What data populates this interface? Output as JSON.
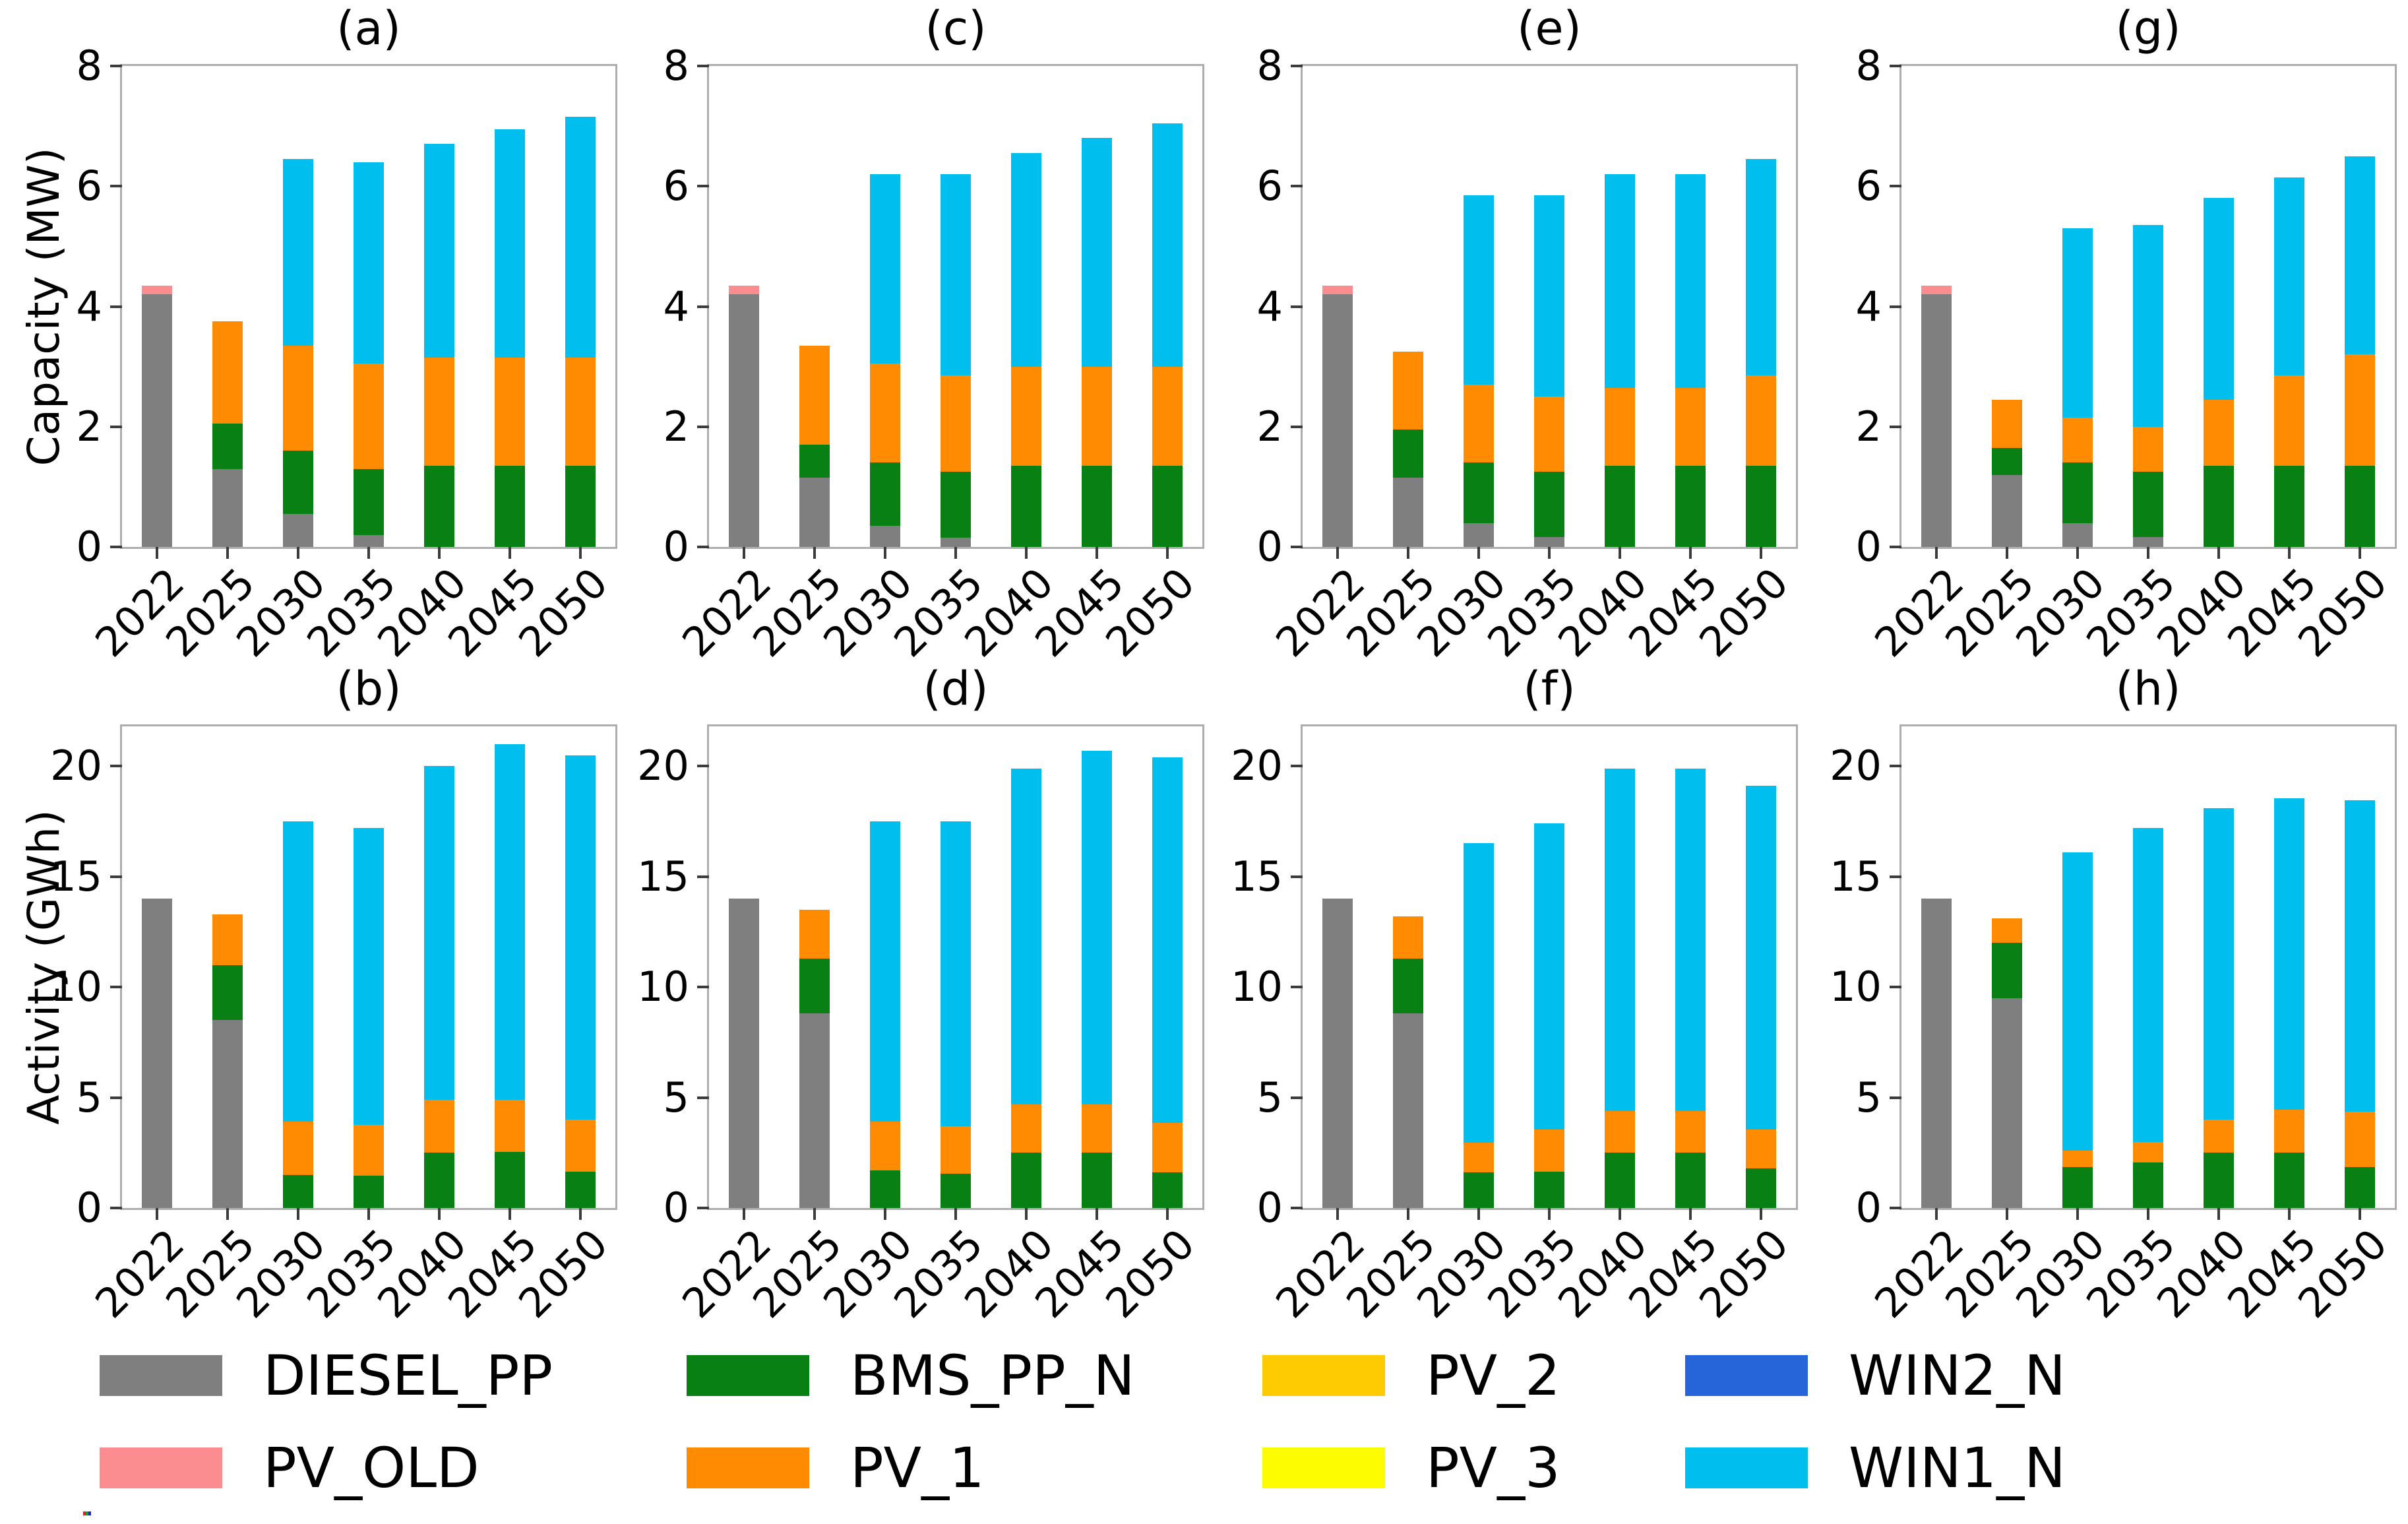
{
  "colors": {
    "DIESEL_PP": "#7f7f7f",
    "PV_OLD": "#fb8d90",
    "BMS_PP_N": "#088013",
    "PV_1": "#fe8b02",
    "PV_2": "#fecb02",
    "PV_3": "#fdfc00",
    "WIN2_N": "#2565d9",
    "WIN1_N": "#00bfef",
    "spine": "#adadad",
    "tick": "#3c3c3c"
  },
  "legend": {
    "items": [
      {
        "label": "DIESEL_PP",
        "color_key": "DIESEL_PP",
        "row": 0,
        "col": 0
      },
      {
        "label": "PV_OLD",
        "color_key": "PV_OLD",
        "row": 1,
        "col": 0
      },
      {
        "label": "BMS_PP_N",
        "color_key": "BMS_PP_N",
        "row": 0,
        "col": 1
      },
      {
        "label": "PV_1",
        "color_key": "PV_1",
        "row": 1,
        "col": 1
      },
      {
        "label": "PV_2",
        "color_key": "PV_2",
        "row": 0,
        "col": 2
      },
      {
        "label": "PV_3",
        "color_key": "PV_3",
        "row": 1,
        "col": 2
      },
      {
        "label": "WIN2_N",
        "color_key": "WIN2_N",
        "row": 0,
        "col": 3
      },
      {
        "label": "WIN1_N",
        "color_key": "WIN1_N",
        "row": 1,
        "col": 3
      }
    ]
  },
  "chart_data": [
    {
      "id": "a",
      "title": "(a)",
      "type": "bar",
      "stacked": true,
      "ylabel": "Capacity (MW)",
      "categories": [
        "2022",
        "2025",
        "2030",
        "2035",
        "2040",
        "2045",
        "2050"
      ],
      "ylim": [
        0,
        8
      ],
      "yticks": [
        0,
        2,
        4,
        6,
        8
      ],
      "grid": false,
      "series": [
        {
          "name": "DIESEL_PP",
          "values": [
            4.2,
            1.3,
            0.55,
            0.2,
            0,
            0,
            0
          ]
        },
        {
          "name": "PV_OLD",
          "values": [
            0.15,
            0,
            0,
            0,
            0,
            0,
            0
          ]
        },
        {
          "name": "BMS_PP_N",
          "values": [
            0,
            0.75,
            1.05,
            1.1,
            1.35,
            1.35,
            1.35
          ]
        },
        {
          "name": "PV_1",
          "values": [
            0,
            1.7,
            1.75,
            1.75,
            1.8,
            1.8,
            1.8
          ]
        },
        {
          "name": "WIN1_N",
          "values": [
            0,
            0,
            3.1,
            3.35,
            3.55,
            3.8,
            4.0
          ]
        }
      ]
    },
    {
      "id": "c",
      "title": "(c)",
      "type": "bar",
      "stacked": true,
      "categories": [
        "2022",
        "2025",
        "2030",
        "2035",
        "2040",
        "2045",
        "2050"
      ],
      "ylim": [
        0,
        8
      ],
      "yticks": [
        0,
        2,
        4,
        6,
        8
      ],
      "grid": false,
      "series": [
        {
          "name": "DIESEL_PP",
          "values": [
            4.2,
            1.15,
            0.35,
            0.15,
            0,
            0,
            0
          ]
        },
        {
          "name": "PV_OLD",
          "values": [
            0.15,
            0,
            0,
            0,
            0,
            0,
            0
          ]
        },
        {
          "name": "BMS_PP_N",
          "values": [
            0,
            0.55,
            1.05,
            1.1,
            1.35,
            1.35,
            1.35
          ]
        },
        {
          "name": "PV_1",
          "values": [
            0,
            1.65,
            1.65,
            1.6,
            1.65,
            1.65,
            1.65
          ]
        },
        {
          "name": "WIN1_N",
          "values": [
            0,
            0,
            3.15,
            3.35,
            3.55,
            3.8,
            4.05
          ]
        }
      ]
    },
    {
      "id": "e",
      "title": "(e)",
      "type": "bar",
      "stacked": true,
      "categories": [
        "2022",
        "2025",
        "2030",
        "2035",
        "2040",
        "2045",
        "2050"
      ],
      "ylim": [
        0,
        8
      ],
      "yticks": [
        0,
        2,
        4,
        6,
        8
      ],
      "grid": false,
      "series": [
        {
          "name": "DIESEL_PP",
          "values": [
            4.2,
            1.15,
            0.4,
            0.17,
            0,
            0,
            0
          ]
        },
        {
          "name": "PV_OLD",
          "values": [
            0.15,
            0,
            0,
            0,
            0,
            0,
            0
          ]
        },
        {
          "name": "BMS_PP_N",
          "values": [
            0,
            0.8,
            1.0,
            1.08,
            1.35,
            1.35,
            1.35
          ]
        },
        {
          "name": "PV_1",
          "values": [
            0,
            1.3,
            1.3,
            1.25,
            1.3,
            1.3,
            1.5
          ]
        },
        {
          "name": "WIN1_N",
          "values": [
            0,
            0,
            3.15,
            3.35,
            3.55,
            3.55,
            3.6
          ]
        }
      ]
    },
    {
      "id": "g",
      "title": "(g)",
      "type": "bar",
      "stacked": true,
      "categories": [
        "2022",
        "2025",
        "2030",
        "2035",
        "2040",
        "2045",
        "2050"
      ],
      "ylim": [
        0,
        8
      ],
      "yticks": [
        0,
        2,
        4,
        6,
        8
      ],
      "grid": false,
      "series": [
        {
          "name": "DIESEL_PP",
          "values": [
            4.2,
            1.2,
            0.4,
            0.17,
            0,
            0,
            0
          ]
        },
        {
          "name": "PV_OLD",
          "values": [
            0.15,
            0,
            0,
            0,
            0,
            0,
            0
          ]
        },
        {
          "name": "BMS_PP_N",
          "values": [
            0,
            0.45,
            1.0,
            1.08,
            1.35,
            1.35,
            1.35
          ]
        },
        {
          "name": "PV_1",
          "values": [
            0,
            0.8,
            0.75,
            0.75,
            1.1,
            1.5,
            1.85
          ]
        },
        {
          "name": "WIN1_N",
          "values": [
            0,
            0,
            3.15,
            3.35,
            3.35,
            3.3,
            3.3
          ]
        }
      ]
    },
    {
      "id": "b",
      "title": "(b)",
      "type": "bar",
      "stacked": true,
      "ylabel": "Activity (GWh)",
      "categories": [
        "2022",
        "2025",
        "2030",
        "2035",
        "2040",
        "2045",
        "2050"
      ],
      "ylim": [
        0,
        21.8
      ],
      "yticks": [
        0,
        5,
        10,
        15,
        20
      ],
      "grid": false,
      "series": [
        {
          "name": "DIESEL_PP",
          "values": [
            14.0,
            8.5,
            0,
            0,
            0,
            0,
            0
          ]
        },
        {
          "name": "BMS_PP_N",
          "values": [
            0,
            2.5,
            1.5,
            1.45,
            2.5,
            2.55,
            1.65
          ]
        },
        {
          "name": "PV_1",
          "values": [
            0,
            2.3,
            2.4,
            2.3,
            2.4,
            2.35,
            2.35
          ]
        },
        {
          "name": "WIN1_N",
          "values": [
            0,
            0,
            13.6,
            13.45,
            15.1,
            16.1,
            16.5
          ]
        }
      ]
    },
    {
      "id": "d",
      "title": "(d)",
      "type": "bar",
      "stacked": true,
      "categories": [
        "2022",
        "2025",
        "2030",
        "2035",
        "2040",
        "2045",
        "2050"
      ],
      "ylim": [
        0,
        21.8
      ],
      "yticks": [
        0,
        5,
        10,
        15,
        20
      ],
      "grid": false,
      "series": [
        {
          "name": "DIESEL_PP",
          "values": [
            14.0,
            8.8,
            0,
            0,
            0,
            0,
            0
          ]
        },
        {
          "name": "BMS_PP_N",
          "values": [
            0,
            2.5,
            1.7,
            1.55,
            2.5,
            2.5,
            1.6
          ]
        },
        {
          "name": "PV_1",
          "values": [
            0,
            2.2,
            2.2,
            2.15,
            2.2,
            2.2,
            2.25
          ]
        },
        {
          "name": "WIN1_N",
          "values": [
            0,
            0,
            13.6,
            13.8,
            15.2,
            16.0,
            16.55
          ]
        }
      ]
    },
    {
      "id": "f",
      "title": "(f)",
      "type": "bar",
      "stacked": true,
      "categories": [
        "2022",
        "2025",
        "2030",
        "2035",
        "2040",
        "2045",
        "2050"
      ],
      "ylim": [
        0,
        21.8
      ],
      "yticks": [
        0,
        5,
        10,
        15,
        20
      ],
      "grid": false,
      "series": [
        {
          "name": "DIESEL_PP",
          "values": [
            14.0,
            8.8,
            0,
            0,
            0,
            0,
            0
          ]
        },
        {
          "name": "BMS_PP_N",
          "values": [
            0,
            2.5,
            1.6,
            1.65,
            2.5,
            2.5,
            1.8
          ]
        },
        {
          "name": "PV_1",
          "values": [
            0,
            1.9,
            1.35,
            1.9,
            1.9,
            1.9,
            1.75
          ]
        },
        {
          "name": "WIN1_N",
          "values": [
            0,
            0,
            13.55,
            13.85,
            15.5,
            15.5,
            15.55
          ]
        }
      ]
    },
    {
      "id": "h",
      "title": "(h)",
      "type": "bar",
      "stacked": true,
      "categories": [
        "2022",
        "2025",
        "2030",
        "2035",
        "2040",
        "2045",
        "2050"
      ],
      "ylim": [
        0,
        21.8
      ],
      "yticks": [
        0,
        5,
        10,
        15,
        20
      ],
      "grid": false,
      "series": [
        {
          "name": "DIESEL_PP",
          "values": [
            14.0,
            9.5,
            0,
            0,
            0,
            0,
            0
          ]
        },
        {
          "name": "BMS_PP_N",
          "values": [
            0,
            2.5,
            1.85,
            2.05,
            2.5,
            2.5,
            1.85
          ]
        },
        {
          "name": "PV_1",
          "values": [
            0,
            1.1,
            0.75,
            0.95,
            1.5,
            1.95,
            2.5
          ]
        },
        {
          "name": "WIN1_N",
          "values": [
            0,
            0,
            13.5,
            14.2,
            14.1,
            14.1,
            14.1
          ]
        }
      ]
    }
  ]
}
